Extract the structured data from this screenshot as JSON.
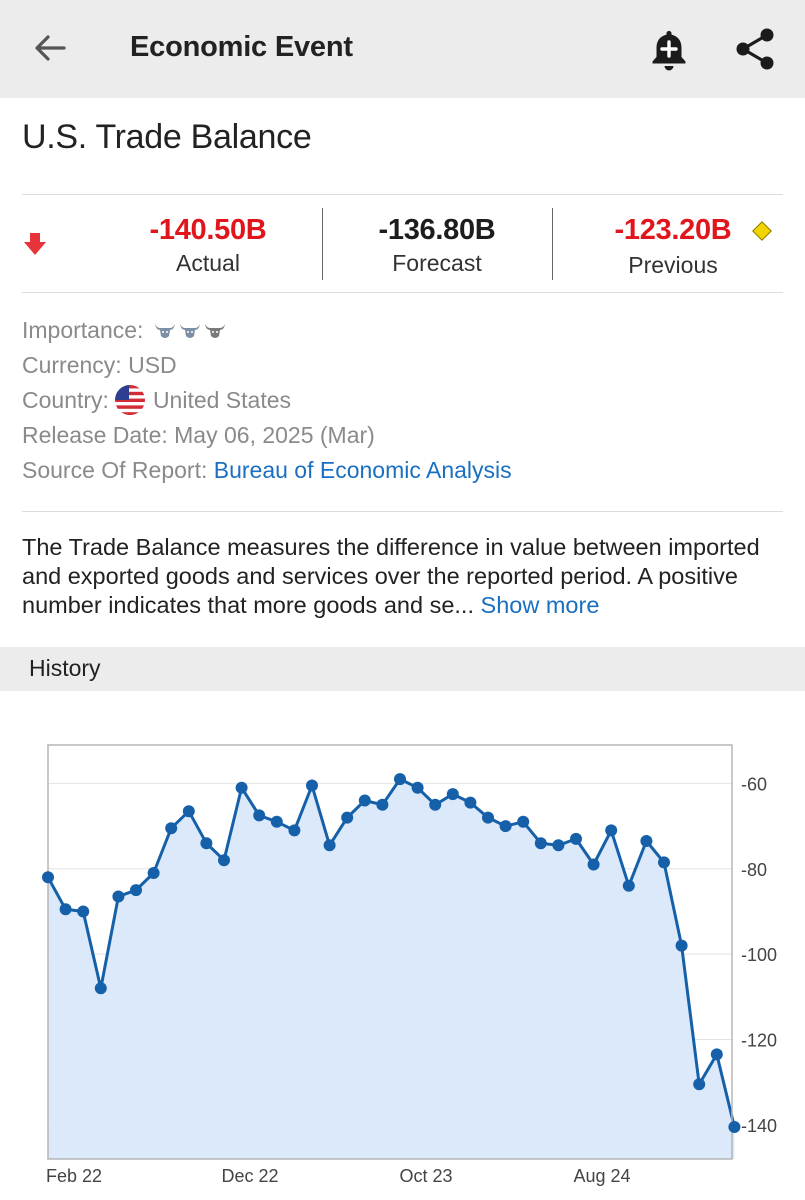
{
  "appbar": {
    "title": "Economic Event",
    "back_icon": "arrow-left-icon",
    "alert_icon": "bell-plus-icon",
    "share_icon": "share-icon"
  },
  "event": {
    "title": "U.S. Trade Balance",
    "trend_icon": "arrow-down-icon",
    "actual": {
      "value": "-140.50B",
      "label": "Actual",
      "color": "#e0161c"
    },
    "forecast": {
      "value": "-136.80B",
      "label": "Forecast",
      "color": "#1d1d1d"
    },
    "previous": {
      "value": "-123.20B",
      "label": "Previous",
      "color": "#e0161c",
      "revised_icon": "diamond-icon"
    }
  },
  "details": {
    "importance_label": "Importance:",
    "importance_level": 3,
    "importance_max": 3,
    "currency_label": "Currency:",
    "currency": "USD",
    "country_label": "Country:",
    "country": "United States",
    "country_flag_icon": "us-flag-icon",
    "release_label": "Release Date:",
    "release_date": "May 06, 2025 (Mar)",
    "source_label": "Source Of Report:",
    "source": "Bureau of Economic Analysis",
    "link_color": "#1a6fc0"
  },
  "description": {
    "text": "The Trade Balance measures the difference in value between imported and exported goods and services over the reported period. A positive number indicates that more goods and se...",
    "show_more": "Show more"
  },
  "history": {
    "label": "History"
  },
  "chart_data": {
    "type": "area",
    "title": "",
    "xlabel": "",
    "ylabel": "",
    "ylim": [
      -148,
      -51
    ],
    "y_ticks": [
      -60,
      -80,
      -100,
      -120,
      -140
    ],
    "x_tick_labels": [
      "Feb 22",
      "Dec 22",
      "Oct 23",
      "Aug 24"
    ],
    "x_tick_index": [
      0,
      10,
      20,
      30
    ],
    "y_axis_position": "right",
    "grid": true,
    "line_color": "#1560a8",
    "fill_color": "#d9e8fb",
    "series": [
      {
        "values": [
          -82,
          -89.5,
          -90,
          -108,
          -86.5,
          -85,
          -81,
          -70.5,
          -66.5,
          -74,
          -78,
          -61,
          -67.5,
          -69,
          -71,
          -60.5,
          -74.5,
          -68,
          -64,
          -65,
          -59,
          -61,
          -65,
          -62.5,
          -64.5,
          -68,
          -70,
          -69,
          -74,
          -74.5,
          -73,
          -79,
          -71,
          -84,
          -73.5,
          -78.5,
          -98,
          -130.5,
          -123.5,
          -140.5
        ]
      }
    ]
  }
}
